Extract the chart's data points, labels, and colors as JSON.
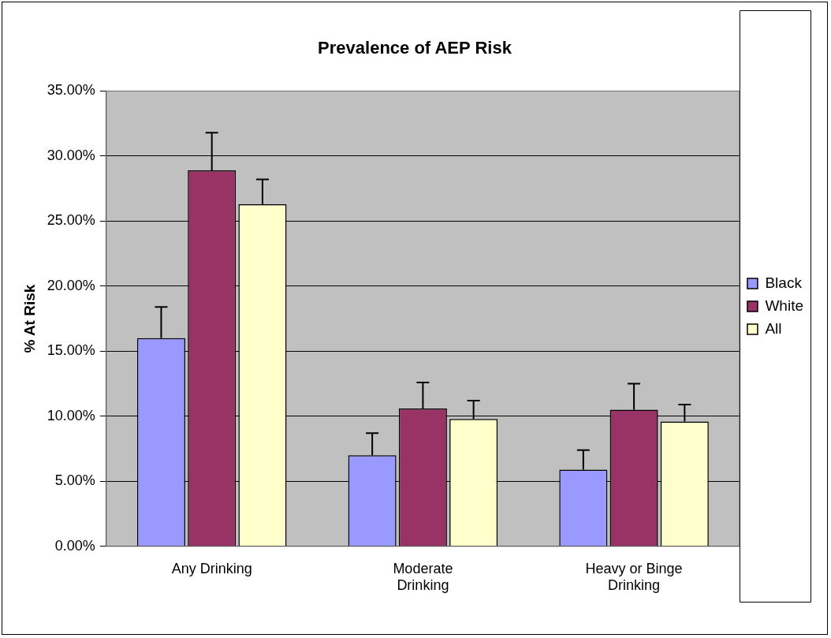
{
  "chart_data": {
    "type": "bar",
    "title": "Prevalence of AEP Risk",
    "ylabel": "% At Risk",
    "categories": [
      "Any Drinking",
      "Moderate Drinking",
      "Heavy or Binge Drinking"
    ],
    "series": [
      {
        "name": "Black",
        "color": "#9999ff",
        "values": [
          16.0,
          7.0,
          5.9
        ],
        "errors": [
          [
            16.0,
            18.4
          ],
          [
            7.0,
            8.7
          ],
          [
            5.9,
            7.4
          ]
        ]
      },
      {
        "name": "White",
        "color": "#993366",
        "values": [
          28.9,
          10.6,
          10.5
        ],
        "errors": [
          [
            28.9,
            31.8
          ],
          [
            10.6,
            12.6
          ],
          [
            10.5,
            12.5
          ]
        ]
      },
      {
        "name": "All",
        "color": "#ffffcc",
        "values": [
          26.3,
          9.8,
          9.6
        ],
        "errors": [
          [
            26.3,
            28.2
          ],
          [
            9.8,
            11.2
          ],
          [
            9.6,
            10.9
          ]
        ]
      }
    ],
    "ylim": [
      0,
      35
    ],
    "yticks": [
      {
        "value": 0,
        "label": "0.00%"
      },
      {
        "value": 5,
        "label": "5.00%"
      },
      {
        "value": 10,
        "label": "10.00%"
      },
      {
        "value": 15,
        "label": "15.00%"
      },
      {
        "value": 20,
        "label": "20.00%"
      },
      {
        "value": 25,
        "label": "25.00%"
      },
      {
        "value": 30,
        "label": "30.00%"
      },
      {
        "value": 35,
        "label": "35.00%"
      }
    ],
    "grid": "y",
    "legend": "right"
  }
}
